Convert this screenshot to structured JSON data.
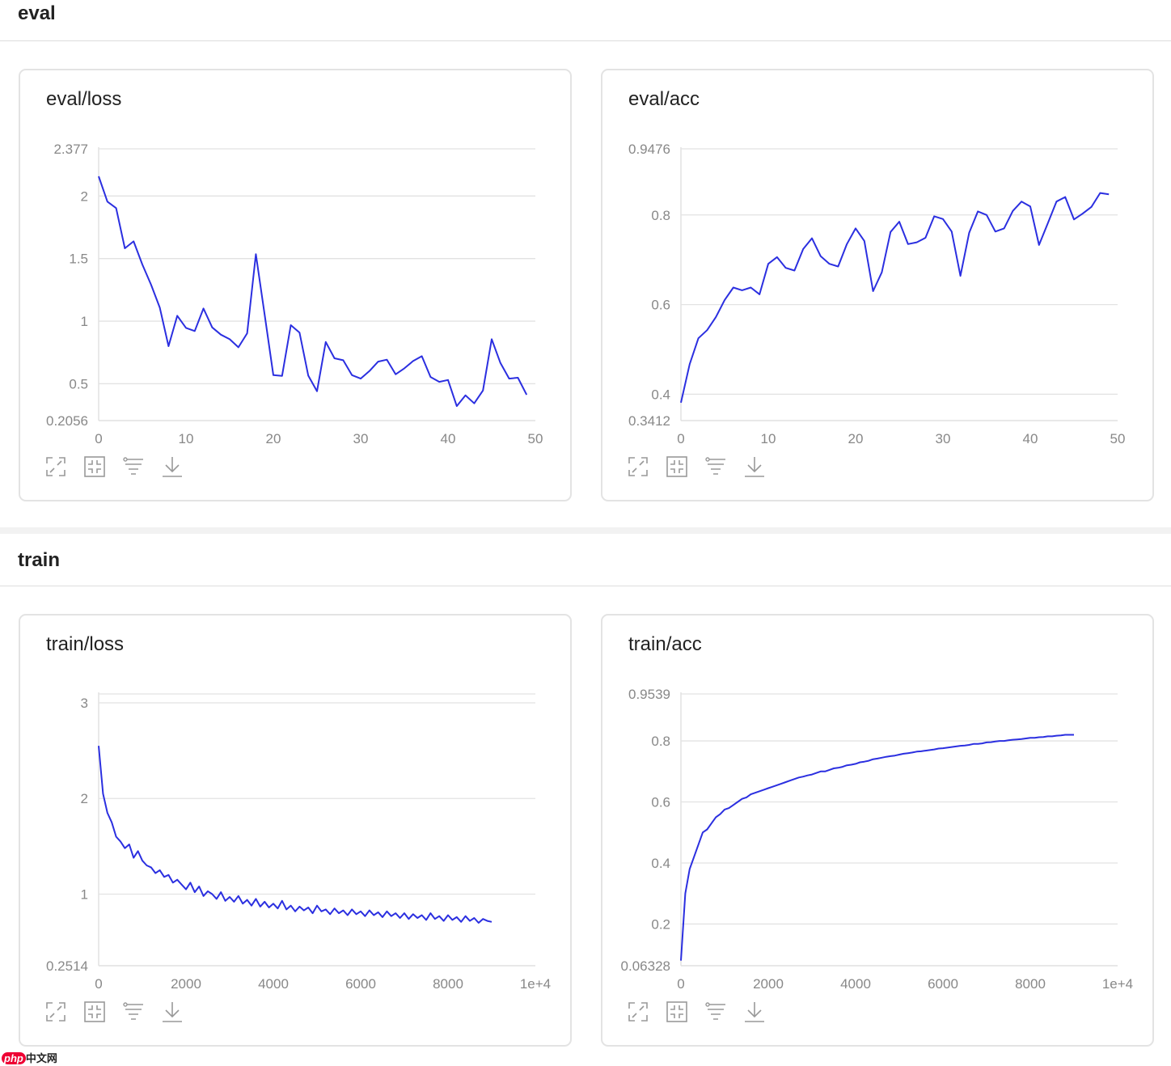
{
  "sections": {
    "eval": "eval",
    "train": "train"
  },
  "watermark": {
    "logo": "php",
    "text": "中文网"
  },
  "colors": {
    "line": "#2b2fe0",
    "grid": "#e2e2e2",
    "tick": "#888888"
  },
  "toolbar_icons": [
    "expand-icon",
    "fit-icon",
    "filter-icon",
    "download-icon"
  ],
  "chart_data": [
    {
      "type": "line",
      "title": "eval/loss",
      "xlabel": "",
      "ylabel": "",
      "x_start": 0,
      "x_step": 1,
      "xlim": [
        0,
        50
      ],
      "ylim": [
        0.2056,
        2.377
      ],
      "xticks": [
        {
          "v": 0,
          "label": "0"
        },
        {
          "v": 10,
          "label": "10"
        },
        {
          "v": 20,
          "label": "20"
        },
        {
          "v": 30,
          "label": "30"
        },
        {
          "v": 40,
          "label": "40"
        },
        {
          "v": 50,
          "label": "50"
        }
      ],
      "yticks": [
        {
          "v": 2.377,
          "label": "2.377"
        },
        {
          "v": 2,
          "label": "2"
        },
        {
          "v": 1.5,
          "label": "1.5"
        },
        {
          "v": 1,
          "label": "1"
        },
        {
          "v": 0.5,
          "label": "0.5"
        },
        {
          "v": 0.2056,
          "label": "0.2056"
        }
      ],
      "values": [
        2.157,
        1.955,
        1.903,
        1.582,
        1.638,
        1.453,
        1.291,
        1.108,
        0.8,
        1.043,
        0.946,
        0.921,
        1.101,
        0.95,
        0.892,
        0.856,
        0.791,
        0.903,
        1.535,
        1.054,
        0.569,
        0.563,
        0.968,
        0.908,
        0.565,
        0.44,
        0.834,
        0.703,
        0.688,
        0.569,
        0.541,
        0.601,
        0.677,
        0.692,
        0.575,
        0.623,
        0.681,
        0.72,
        0.554,
        0.515,
        0.53,
        0.321,
        0.407,
        0.343,
        0.446,
        0.856,
        0.666,
        0.541,
        0.548,
        0.412
      ],
      "grid": true
    },
    {
      "type": "line",
      "title": "eval/acc",
      "xlabel": "",
      "ylabel": "",
      "x_start": 0,
      "x_step": 1,
      "xlim": [
        0,
        50
      ],
      "ylim": [
        0.3412,
        0.9476
      ],
      "xticks": [
        {
          "v": 0,
          "label": "0"
        },
        {
          "v": 10,
          "label": "10"
        },
        {
          "v": 20,
          "label": "20"
        },
        {
          "v": 30,
          "label": "30"
        },
        {
          "v": 40,
          "label": "40"
        },
        {
          "v": 50,
          "label": "50"
        }
      ],
      "yticks": [
        {
          "v": 0.9476,
          "label": "0.9476"
        },
        {
          "v": 0.8,
          "label": "0.8"
        },
        {
          "v": 0.6,
          "label": "0.6"
        },
        {
          "v": 0.4,
          "label": "0.4"
        },
        {
          "v": 0.3412,
          "label": "0.3412"
        }
      ],
      "values": [
        0.381,
        0.467,
        0.525,
        0.543,
        0.572,
        0.61,
        0.638,
        0.632,
        0.638,
        0.623,
        0.691,
        0.706,
        0.682,
        0.676,
        0.724,
        0.748,
        0.708,
        0.691,
        0.685,
        0.735,
        0.77,
        0.742,
        0.63,
        0.672,
        0.762,
        0.785,
        0.735,
        0.739,
        0.749,
        0.797,
        0.791,
        0.763,
        0.664,
        0.76,
        0.808,
        0.8,
        0.763,
        0.77,
        0.809,
        0.83,
        0.819,
        0.733,
        0.781,
        0.83,
        0.84,
        0.79,
        0.803,
        0.818,
        0.849,
        0.846
      ],
      "grid": true
    },
    {
      "type": "line",
      "title": "train/loss",
      "xlabel": "",
      "ylabel": "",
      "x_start": 0,
      "x_step": 100,
      "xlim": [
        0,
        10000
      ],
      "ylim": [
        0.2514,
        3.093
      ],
      "xticks": [
        {
          "v": 0,
          "label": "0"
        },
        {
          "v": 2000,
          "label": "2000"
        },
        {
          "v": 4000,
          "label": "4000"
        },
        {
          "v": 6000,
          "label": "6000"
        },
        {
          "v": 8000,
          "label": "8000"
        },
        {
          "v": 10000,
          "label": "1e+4"
        }
      ],
      "yticks": [
        {
          "v": 3.093,
          "label": ""
        },
        {
          "v": 3,
          "label": "3"
        },
        {
          "v": 2,
          "label": "2"
        },
        {
          "v": 1,
          "label": "1"
        },
        {
          "v": 0.2514,
          "label": "0.2514"
        }
      ],
      "values": [
        2.55,
        2.05,
        1.85,
        1.75,
        1.6,
        1.55,
        1.48,
        1.52,
        1.38,
        1.45,
        1.35,
        1.3,
        1.28,
        1.22,
        1.25,
        1.18,
        1.2,
        1.12,
        1.15,
        1.1,
        1.05,
        1.12,
        1.02,
        1.08,
        0.98,
        1.03,
        1.0,
        0.95,
        1.02,
        0.93,
        0.97,
        0.92,
        0.98,
        0.9,
        0.94,
        0.88,
        0.95,
        0.87,
        0.92,
        0.86,
        0.9,
        0.85,
        0.93,
        0.84,
        0.88,
        0.82,
        0.87,
        0.83,
        0.86,
        0.8,
        0.88,
        0.82,
        0.84,
        0.79,
        0.85,
        0.8,
        0.83,
        0.78,
        0.84,
        0.79,
        0.82,
        0.77,
        0.83,
        0.78,
        0.81,
        0.76,
        0.82,
        0.77,
        0.8,
        0.75,
        0.8,
        0.74,
        0.79,
        0.75,
        0.78,
        0.73,
        0.8,
        0.74,
        0.77,
        0.72,
        0.78,
        0.73,
        0.76,
        0.71,
        0.77,
        0.72,
        0.75,
        0.7,
        0.74,
        0.72,
        0.71
      ],
      "grid": true
    },
    {
      "type": "line",
      "title": "train/acc",
      "xlabel": "",
      "ylabel": "",
      "x_start": 0,
      "x_step": 100,
      "xlim": [
        0,
        10000
      ],
      "ylim": [
        0.06328,
        0.9539
      ],
      "xticks": [
        {
          "v": 0,
          "label": "0"
        },
        {
          "v": 2000,
          "label": "2000"
        },
        {
          "v": 4000,
          "label": "4000"
        },
        {
          "v": 6000,
          "label": "6000"
        },
        {
          "v": 8000,
          "label": "8000"
        },
        {
          "v": 10000,
          "label": "1e+4"
        }
      ],
      "yticks": [
        {
          "v": 0.9539,
          "label": "0.9539"
        },
        {
          "v": 0.8,
          "label": "0.8"
        },
        {
          "v": 0.6,
          "label": "0.6"
        },
        {
          "v": 0.4,
          "label": "0.4"
        },
        {
          "v": 0.2,
          "label": "0.2"
        },
        {
          "v": 0.06328,
          "label": "0.06328"
        }
      ],
      "values": [
        0.08,
        0.3,
        0.38,
        0.42,
        0.46,
        0.5,
        0.51,
        0.53,
        0.55,
        0.56,
        0.575,
        0.58,
        0.59,
        0.6,
        0.61,
        0.615,
        0.625,
        0.63,
        0.635,
        0.64,
        0.645,
        0.65,
        0.655,
        0.66,
        0.665,
        0.67,
        0.675,
        0.68,
        0.683,
        0.687,
        0.69,
        0.695,
        0.7,
        0.7,
        0.705,
        0.71,
        0.712,
        0.715,
        0.72,
        0.722,
        0.725,
        0.73,
        0.732,
        0.735,
        0.74,
        0.742,
        0.745,
        0.748,
        0.75,
        0.752,
        0.755,
        0.758,
        0.76,
        0.762,
        0.765,
        0.766,
        0.768,
        0.77,
        0.772,
        0.775,
        0.776,
        0.778,
        0.78,
        0.782,
        0.784,
        0.785,
        0.787,
        0.79,
        0.79,
        0.792,
        0.795,
        0.796,
        0.798,
        0.8,
        0.8,
        0.802,
        0.804,
        0.805,
        0.806,
        0.808,
        0.81,
        0.81,
        0.812,
        0.813,
        0.815,
        0.815,
        0.817,
        0.818,
        0.82,
        0.82,
        0.82
      ],
      "grid": true
    }
  ]
}
